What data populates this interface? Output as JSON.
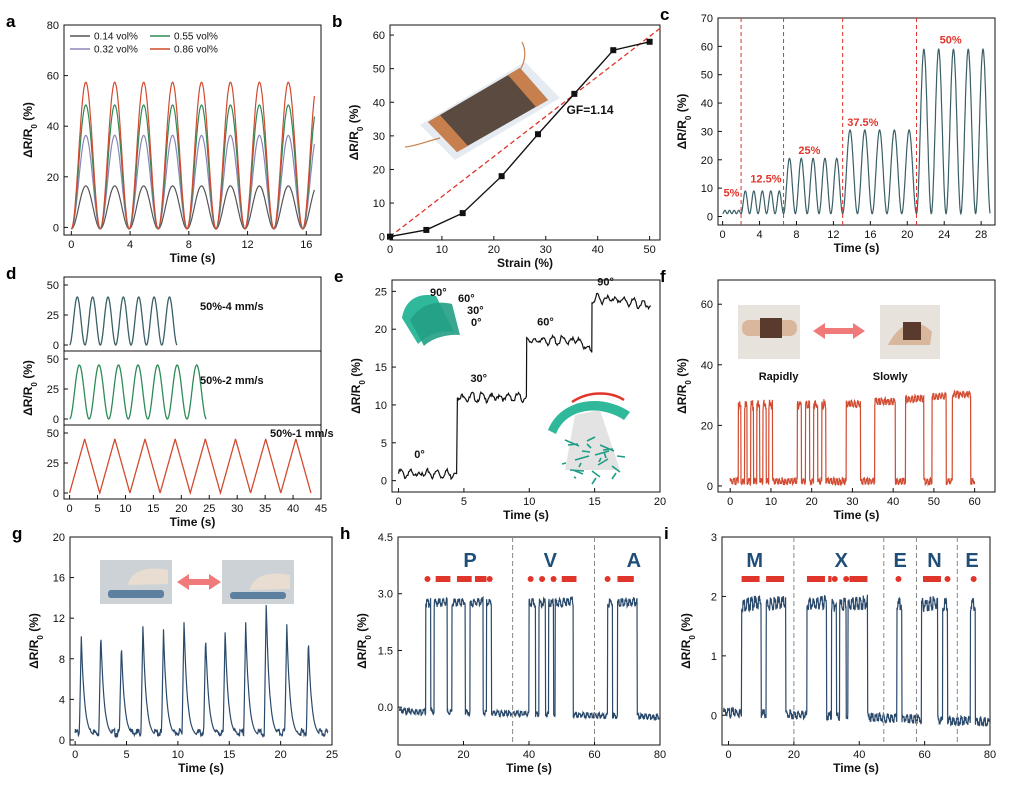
{
  "colors": {
    "navy": "#2b4a6b",
    "teal": "#3a5f66",
    "green": "#2e8b57",
    "red": "#d24a2f",
    "redline": "#e0352b",
    "gray": "#555555",
    "lavender": "#8c86b8",
    "morse": "#e0352b",
    "letter": "#1f4e79"
  },
  "chart_data": [
    {
      "panel": "a",
      "type": "line",
      "xlabel": "Time (s)",
      "ylabel": "ΔR/R₀ (%)",
      "xlim": [
        -0.5,
        17
      ],
      "ylim": [
        -3,
        80
      ],
      "xticks": [
        0,
        4,
        8,
        12,
        16
      ],
      "yticks": [
        0,
        20,
        40,
        60,
        80
      ],
      "period_s": 1.97,
      "cycles": 8,
      "legend": "top-left",
      "series": [
        {
          "name": "0.14 vol%",
          "peak": 17,
          "color": "#555555"
        },
        {
          "name": "0.32 vol%",
          "peak": 37,
          "color": "#8c86b8"
        },
        {
          "name": "0.55 vol%",
          "peak": 49,
          "color": "#2e8b57"
        },
        {
          "name": "0.86 vol%",
          "peak": 58,
          "color": "#d24a2f"
        }
      ]
    },
    {
      "panel": "b",
      "type": "line",
      "xlabel": "Strain (%)",
      "ylabel": "ΔR/R₀ (%)",
      "xlim": [
        0,
        52
      ],
      "ylim": [
        -1,
        63
      ],
      "xticks": [
        0,
        10,
        20,
        30,
        40,
        50
      ],
      "yticks": [
        0,
        10,
        20,
        30,
        40,
        50,
        60
      ],
      "x": [
        0,
        7,
        14,
        21.5,
        28.5,
        35.5,
        43,
        50
      ],
      "y": [
        0,
        2,
        7,
        18,
        30.5,
        42.5,
        55.5,
        58
      ],
      "fit": {
        "label": "GF=1.14",
        "x": [
          0,
          52
        ],
        "y": [
          0,
          62
        ]
      }
    },
    {
      "panel": "c",
      "type": "line",
      "xlabel": "Time (s)",
      "ylabel": "ΔR/R₀ (%)",
      "xlim": [
        -0.5,
        29.5
      ],
      "ylim": [
        -3,
        70
      ],
      "xticks": [
        0,
        4,
        8,
        12,
        16,
        20,
        24,
        28
      ],
      "yticks": [
        0,
        10,
        20,
        30,
        40,
        50,
        60,
        70
      ],
      "segments": [
        {
          "label": "5%",
          "start": 0,
          "end": 2,
          "peak": 1.2,
          "cycles": 4
        },
        {
          "label": "12.5%",
          "start": 2,
          "end": 6.6,
          "peak": 8,
          "cycles": 5
        },
        {
          "label": "25%",
          "start": 6.6,
          "end": 13,
          "peak": 19.5,
          "cycles": 5
        },
        {
          "label": "37.5%",
          "start": 13,
          "end": 21,
          "peak": 29.5,
          "cycles": 5
        },
        {
          "label": "50%",
          "start": 21,
          "end": 29,
          "peak": 58,
          "cycles": 5
        }
      ],
      "dividers": [
        2,
        6.6,
        13,
        21
      ]
    },
    {
      "panel": "d",
      "type": "line",
      "xlabel": "Time (s)",
      "ylabel": "ΔR/R₀ (%)",
      "xlim": [
        -1,
        45
      ],
      "xticks": [
        0,
        5,
        10,
        15,
        20,
        25,
        30,
        35,
        40,
        45
      ],
      "rows": [
        {
          "label": "50%-4 mm/s",
          "period": 2.75,
          "start": 0,
          "cycles": 7,
          "peak": 40,
          "yticks": [
            0,
            25,
            50
          ],
          "color": "#3a5f66"
        },
        {
          "label": "50%-2 mm/s",
          "period": 3.5,
          "start": 0,
          "cycles": 7,
          "peak": 45,
          "yticks": [
            0,
            25,
            50
          ],
          "color": "#2e8b57"
        },
        {
          "label": "50%-1 mm/s",
          "period": 5.4,
          "start": 0,
          "cycles": 8,
          "peak": 45,
          "yticks": [
            0,
            25,
            50
          ],
          "color": "#d24a2f"
        }
      ]
    },
    {
      "panel": "e",
      "type": "line",
      "xlabel": "Time (s)",
      "ylabel": "ΔR/R₀ (%)",
      "xlim": [
        -0.5,
        20
      ],
      "ylim": [
        -1.5,
        26.5
      ],
      "xticks": [
        0,
        5,
        10,
        15,
        20
      ],
      "yticks": [
        0,
        5,
        10,
        15,
        20,
        25
      ],
      "steps": [
        {
          "label": "0°",
          "start": 0,
          "end": 4.5,
          "level": 0.9
        },
        {
          "label": "30°",
          "start": 4.5,
          "end": 9.8,
          "level": 11
        },
        {
          "label": "60°",
          "start": 9.8,
          "end": 14.8,
          "level": 18.5
        },
        {
          "label": "90°",
          "start": 14.8,
          "end": 19.3,
          "level": 24
        }
      ],
      "inset_angles": [
        "90°",
        "60°",
        "30°",
        "0°"
      ]
    },
    {
      "panel": "f",
      "type": "line",
      "xlabel": "Time (s)",
      "ylabel": "ΔR/R₀ (%)",
      "xlim": [
        -3,
        65
      ],
      "ylim": [
        -2,
        68
      ],
      "xticks": [
        0,
        10,
        20,
        30,
        40,
        50,
        60
      ],
      "yticks": [
        0,
        20,
        40,
        60
      ],
      "groups": [
        "Rapidly",
        "Slowly"
      ],
      "pulses_fast": [
        [
          2,
          2.6
        ],
        [
          3.5,
          4.1
        ],
        [
          5,
          5.7
        ],
        [
          6.5,
          7.2
        ],
        [
          8,
          8.8
        ],
        [
          9.5,
          10.4
        ],
        [
          16.5,
          17.5
        ],
        [
          18.5,
          19.5
        ],
        [
          20.5,
          21.5
        ],
        [
          22.5,
          23.5
        ]
      ],
      "pulses_slow": [
        [
          28.5,
          32
        ],
        [
          35.5,
          40.5
        ],
        [
          43,
          47.5
        ],
        [
          49.5,
          53
        ],
        [
          54.5,
          59
        ]
      ]
    },
    {
      "panel": "g",
      "type": "line",
      "xlabel": "Time (s)",
      "ylabel": "ΔR/R₀ (%)",
      "xlim": [
        -0.5,
        25
      ],
      "ylim": [
        -0.5,
        20
      ],
      "xticks": [
        0,
        5,
        10,
        15,
        20,
        25
      ],
      "yticks": [
        0,
        4,
        8,
        12,
        16,
        20
      ],
      "peaks_x": [
        0.6,
        2.5,
        4.5,
        6.6,
        8.6,
        10.6,
        12.7,
        14.6,
        16.6,
        18.6,
        20.6,
        22.7
      ],
      "peaks_y": [
        9.9,
        10.2,
        9.1,
        10.9,
        10.6,
        11.3,
        9.9,
        10.3,
        11.3,
        13.0,
        11.1,
        9.6
      ]
    },
    {
      "panel": "h",
      "type": "line",
      "xlabel": "Time (s)",
      "ylabel": "ΔR/R₀ (%)",
      "xlim": [
        0,
        80
      ],
      "ylim": [
        -1,
        4.5
      ],
      "xticks": [
        0,
        20,
        40,
        60,
        80
      ],
      "yticks": [
        0.0,
        1.5,
        3.0,
        4.5
      ],
      "ytick_labels": [
        "0.0",
        "1.5",
        "3.0",
        "4.5"
      ],
      "letters": [
        "P",
        "V",
        "A"
      ],
      "dividers": [
        35,
        60
      ],
      "pulses": [
        [
          8.5,
          10
        ],
        [
          11,
          15
        ],
        [
          16.5,
          20.5
        ],
        [
          22,
          26
        ],
        [
          27,
          28.5
        ],
        [
          40,
          42
        ],
        [
          43,
          45
        ],
        [
          46,
          47.5
        ],
        [
          48,
          53.5
        ],
        [
          64,
          65.5
        ],
        [
          67,
          73
        ]
      ]
    },
    {
      "panel": "i",
      "type": "line",
      "xlabel": "Time (s)",
      "ylabel": "ΔR/R₀ (%)",
      "xlim": [
        -2,
        80
      ],
      "ylim": [
        -0.5,
        3
      ],
      "xticks": [
        0,
        20,
        40,
        60,
        80
      ],
      "yticks": [
        0,
        1,
        2,
        3
      ],
      "letters": [
        "M",
        "X",
        "E",
        "N",
        "E"
      ],
      "dividers": [
        20,
        47.5,
        57.5,
        70
      ],
      "pulses": [
        [
          4,
          10
        ],
        [
          11.5,
          17.5
        ],
        [
          24,
          30
        ],
        [
          31.5,
          33
        ],
        [
          34,
          36
        ],
        [
          36.5,
          42.5
        ],
        [
          51.5,
          53
        ],
        [
          59,
          64
        ],
        [
          65.5,
          67
        ],
        [
          74,
          75.5
        ]
      ]
    }
  ]
}
